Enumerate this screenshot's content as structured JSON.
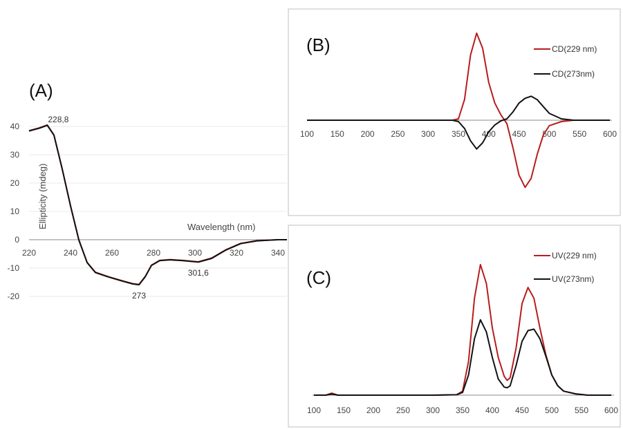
{
  "colors": {
    "red": "#b81c1c",
    "black": "#111111",
    "grid": "#c8c8c8",
    "frame": "#bfbfbf"
  },
  "chart_data": [
    {
      "panel": "(A)",
      "type": "line",
      "xlabel": "Wavelength (nm)",
      "ylabel": "Ellipticity (mdeg)",
      "xlim": [
        220,
        350
      ],
      "ylim": [
        -20,
        40
      ],
      "xticks": [
        "220",
        "240",
        "260",
        "280",
        "300",
        "320",
        "340"
      ],
      "yticks": [
        "40",
        "30",
        "20",
        "10",
        "0",
        "-10",
        "-20"
      ],
      "annotations": [
        {
          "text": "228,8",
          "x": 228.8,
          "y": 40.5
        },
        {
          "text": "273",
          "x": 273,
          "y": -15.8
        },
        {
          "text": "301,6",
          "x": 301.6,
          "y": -7.8
        }
      ],
      "series": [
        {
          "color": "red",
          "x": [
            220,
            225,
            228.8,
            232,
            236,
            240,
            244,
            248,
            252,
            258,
            265,
            270,
            273,
            276,
            279,
            283,
            288,
            294,
            301.6,
            308,
            315,
            322,
            330,
            340,
            350
          ],
          "y": [
            38.5,
            39.5,
            40.5,
            37,
            25,
            12,
            0,
            -8,
            -11.5,
            -13,
            -14.5,
            -15.5,
            -15.8,
            -13,
            -9,
            -7.3,
            -7,
            -7.3,
            -7.8,
            -6.5,
            -3.5,
            -1.3,
            -0.3,
            0,
            0
          ]
        },
        {
          "color": "black",
          "x": [
            220,
            225,
            228.8,
            232,
            236,
            240,
            244,
            248,
            252,
            258,
            265,
            270,
            273,
            276,
            279,
            283,
            288,
            294,
            301.6,
            308,
            315,
            322,
            330,
            340,
            350
          ],
          "y": [
            38.4,
            39.4,
            40.4,
            36.9,
            24.9,
            11.9,
            -0.1,
            -8.1,
            -11.6,
            -13.1,
            -14.6,
            -15.6,
            -15.9,
            -13.1,
            -9.1,
            -7.4,
            -7.1,
            -7.4,
            -7.9,
            -6.6,
            -3.6,
            -1.4,
            -0.4,
            0,
            0
          ]
        }
      ]
    },
    {
      "panel": "(B)",
      "type": "line",
      "xlim": [
        100,
        600
      ],
      "ylim": [
        -1,
        1.3
      ],
      "xticks": [
        "100",
        "150",
        "200",
        "250",
        "300",
        "350",
        "400",
        "450",
        "500",
        "550",
        "600"
      ],
      "series": [
        {
          "name": "CD(229 nm)",
          "color": "red",
          "x": [
            100,
            200,
            300,
            340,
            350,
            360,
            370,
            380,
            390,
            400,
            410,
            420,
            430,
            440,
            450,
            460,
            470,
            480,
            490,
            500,
            520,
            540,
            560,
            600
          ],
          "y": [
            0,
            0,
            0,
            0,
            0.02,
            0.3,
            0.95,
            1.27,
            1.05,
            0.55,
            0.25,
            0.08,
            -0.05,
            -0.4,
            -0.8,
            -0.98,
            -0.85,
            -0.5,
            -0.22,
            -0.08,
            -0.02,
            0,
            0,
            0
          ]
        },
        {
          "name": "CD(273nm)",
          "color": "black",
          "x": [
            100,
            200,
            300,
            340,
            350,
            360,
            370,
            380,
            390,
            400,
            410,
            420,
            430,
            440,
            450,
            460,
            470,
            480,
            490,
            500,
            520,
            540,
            560,
            600
          ],
          "y": [
            0,
            0,
            0,
            0,
            -0.02,
            -0.12,
            -0.3,
            -0.42,
            -0.33,
            -0.17,
            -0.07,
            -0.01,
            0.02,
            0.12,
            0.25,
            0.32,
            0.35,
            0.3,
            0.2,
            0.1,
            0.02,
            0,
            0,
            0
          ]
        }
      ]
    },
    {
      "panel": "(C)",
      "type": "line",
      "xlim": [
        100,
        600
      ],
      "ylim": [
        0,
        1.05
      ],
      "xticks": [
        "100",
        "150",
        "200",
        "250",
        "300",
        "350",
        "400",
        "450",
        "500",
        "550",
        "600"
      ],
      "series": [
        {
          "name": "UV(229 nm)",
          "color": "red",
          "x": [
            100,
            120,
            130,
            140,
            200,
            300,
            340,
            350,
            360,
            370,
            380,
            390,
            400,
            410,
            420,
            425,
            430,
            440,
            450,
            460,
            470,
            480,
            490,
            500,
            510,
            520,
            540,
            560,
            600
          ],
          "y": [
            0,
            0,
            0.015,
            0,
            0,
            0,
            0.003,
            0.03,
            0.25,
            0.72,
            0.97,
            0.83,
            0.5,
            0.28,
            0.14,
            0.11,
            0.13,
            0.35,
            0.68,
            0.8,
            0.72,
            0.5,
            0.3,
            0.15,
            0.07,
            0.03,
            0.01,
            0,
            0
          ]
        },
        {
          "name": "UV(273nm)",
          "color": "black",
          "x": [
            100,
            120,
            130,
            140,
            200,
            300,
            340,
            350,
            360,
            370,
            380,
            390,
            400,
            410,
            420,
            425,
            430,
            440,
            450,
            460,
            470,
            480,
            490,
            500,
            510,
            520,
            540,
            560,
            600
          ],
          "y": [
            0,
            0,
            0.008,
            0,
            0,
            0,
            0.003,
            0.02,
            0.15,
            0.42,
            0.56,
            0.47,
            0.28,
            0.12,
            0.06,
            0.055,
            0.07,
            0.22,
            0.4,
            0.48,
            0.49,
            0.42,
            0.29,
            0.15,
            0.07,
            0.03,
            0.01,
            0,
            0
          ]
        }
      ]
    }
  ]
}
